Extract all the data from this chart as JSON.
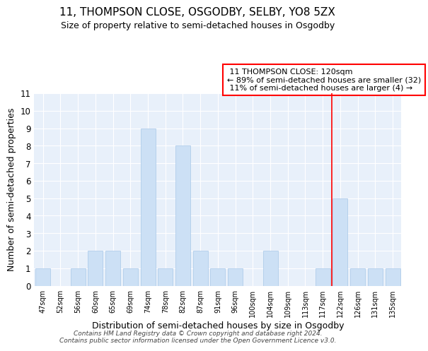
{
  "title": "11, THOMPSON CLOSE, OSGODBY, SELBY, YO8 5ZX",
  "subtitle": "Size of property relative to semi-detached houses in Osgodby",
  "xlabel": "Distribution of semi-detached houses by size in Osgodby",
  "ylabel": "Number of semi-detached properties",
  "categories": [
    "47sqm",
    "52sqm",
    "56sqm",
    "60sqm",
    "65sqm",
    "69sqm",
    "74sqm",
    "78sqm",
    "82sqm",
    "87sqm",
    "91sqm",
    "96sqm",
    "100sqm",
    "104sqm",
    "109sqm",
    "113sqm",
    "117sqm",
    "122sqm",
    "126sqm",
    "131sqm",
    "135sqm"
  ],
  "values": [
    1,
    0,
    1,
    2,
    2,
    1,
    9,
    1,
    8,
    2,
    1,
    1,
    0,
    2,
    0,
    0,
    1,
    5,
    1,
    1,
    1
  ],
  "bar_color": "#cce0f5",
  "bar_edge_color": "#a8c8e8",
  "property_line_label": "11 THOMPSON CLOSE: 120sqm",
  "pct_smaller": "89% of semi-detached houses are smaller (32)",
  "pct_larger": "11% of semi-detached houses are larger (4)",
  "ylim": [
    0,
    11
  ],
  "footer": "Contains HM Land Registry data © Crown copyright and database right 2024.\nContains public sector information licensed under the Open Government Licence v3.0.",
  "bg_color": "#e8f0fa",
  "title_fontsize": 11,
  "subtitle_fontsize": 9,
  "xlabel_fontsize": 9,
  "ylabel_fontsize": 9
}
